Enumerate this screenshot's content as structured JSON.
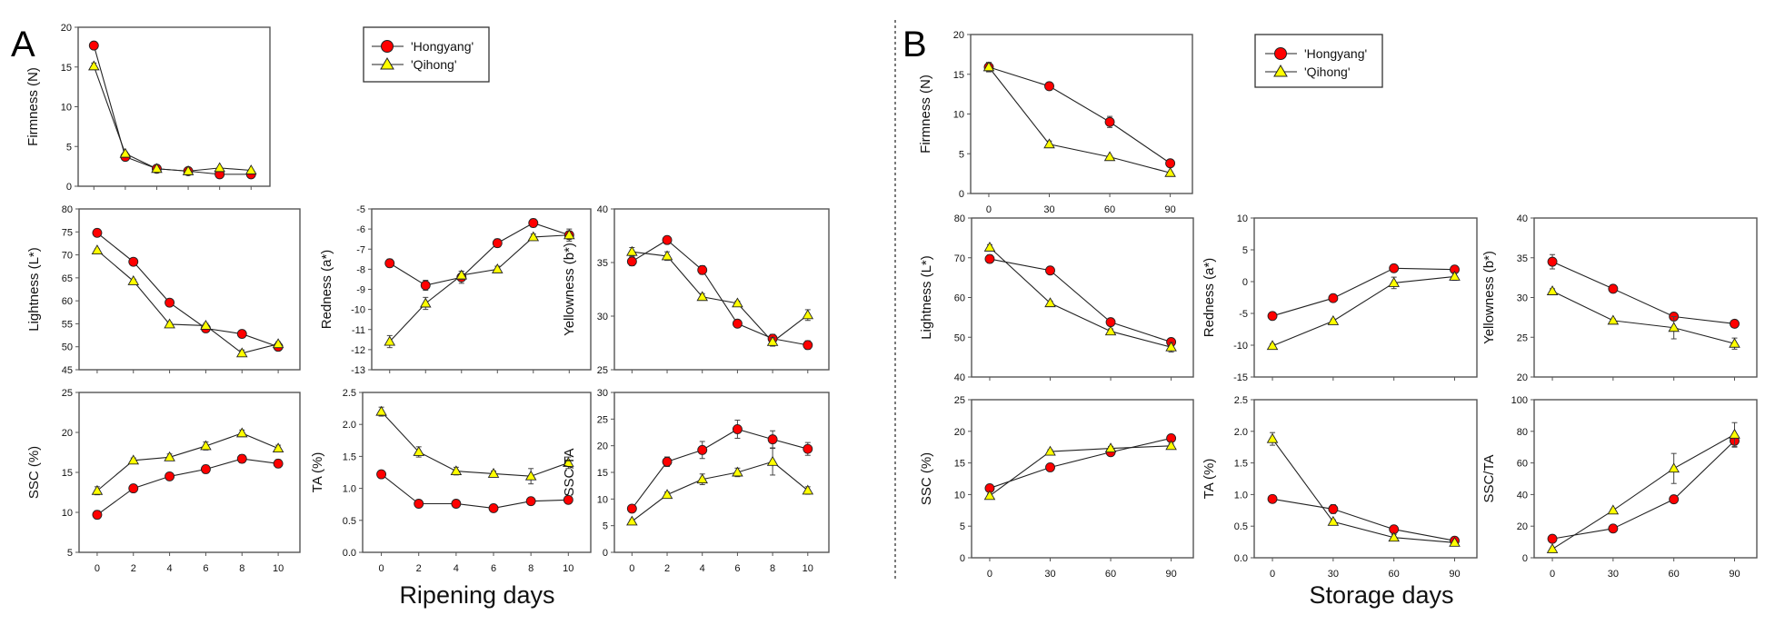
{
  "figure": {
    "panels": [
      {
        "letter": "A",
        "xlabel": "Ripening days"
      },
      {
        "letter": "B",
        "xlabel": "Storage days"
      }
    ],
    "legend": {
      "entries": [
        {
          "label": "'Hongyang'",
          "marker": "circle",
          "color": "#ff0000"
        },
        {
          "label": "'Qihong'",
          "marker": "triangle",
          "color": "#ffff00"
        }
      ]
    },
    "colors": {
      "hongyang": "#ff0000",
      "qihong": "#ffff00",
      "line": "#222222",
      "axis": "#555555"
    }
  },
  "chart_data": [
    {
      "panel": "A",
      "type": "line",
      "id": "A-firmness",
      "ylabel": "Firmness (N)",
      "x": [
        0,
        2,
        4,
        6,
        8,
        10
      ],
      "xticks": [],
      "ylim": [
        0,
        20
      ],
      "yticks": [
        0,
        5,
        10,
        15,
        20
      ],
      "ytick_labels": [
        "0",
        "5",
        "10",
        "15",
        "20"
      ],
      "series": [
        {
          "name": "'Hongyang'",
          "values": [
            17.7,
            3.7,
            2.2,
            1.9,
            1.5,
            1.5
          ],
          "errors": [
            0.3,
            0.2,
            0.1,
            0.1,
            0.1,
            0.1
          ]
        },
        {
          "name": "'Qihong'",
          "values": [
            15.1,
            4.1,
            2.2,
            1.9,
            2.3,
            2.0
          ],
          "errors": [
            0.4,
            0.2,
            0.1,
            0.1,
            0.1,
            0.1
          ]
        }
      ]
    },
    {
      "panel": "A",
      "type": "line",
      "id": "A-lightness",
      "ylabel": "Lightness (L*)",
      "x": [
        0,
        2,
        4,
        6,
        8,
        10
      ],
      "xticks": [],
      "ylim": [
        45,
        80
      ],
      "yticks": [
        45,
        50,
        55,
        60,
        65,
        70,
        75,
        80
      ],
      "ytick_labels": [
        "45",
        "50",
        "55",
        "60",
        "65",
        "70",
        "75",
        "80"
      ],
      "series": [
        {
          "name": "'Hongyang'",
          "values": [
            74.8,
            68.5,
            59.6,
            54.0,
            52.8,
            50.0
          ],
          "errors": [
            0.4,
            0.4,
            0.4,
            0.5,
            0.4,
            0.5
          ]
        },
        {
          "name": "'Qihong'",
          "values": [
            71.0,
            64.3,
            54.9,
            54.6,
            48.6,
            50.6
          ],
          "errors": [
            0.3,
            0.4,
            0.4,
            0.5,
            0.7,
            0.5
          ]
        }
      ]
    },
    {
      "panel": "A",
      "type": "line",
      "id": "A-redness",
      "ylabel": "Redness (a*)",
      "x": [
        0,
        2,
        4,
        6,
        8,
        10
      ],
      "xticks": [],
      "ylim": [
        -13,
        -5
      ],
      "yticks": [
        -13,
        -12,
        -11,
        -10,
        -9,
        -8,
        -7,
        -6,
        -5
      ],
      "ytick_labels": [
        "-13",
        "-12",
        "-11",
        "-10",
        "-9",
        "-8",
        "-7",
        "-6",
        "-5"
      ],
      "series": [
        {
          "name": "'Hongyang'",
          "values": [
            -7.7,
            -8.8,
            -8.4,
            -6.7,
            -5.7,
            -6.3
          ],
          "errors": [
            0.2,
            0.25,
            0.3,
            0.2,
            0.2,
            0.2
          ]
        },
        {
          "name": "'Qihong'",
          "values": [
            -11.6,
            -9.7,
            -8.3,
            -8.0,
            -6.4,
            -6.3
          ],
          "errors": [
            0.3,
            0.3,
            0.2,
            0.15,
            0.15,
            0.3
          ]
        }
      ]
    },
    {
      "panel": "A",
      "type": "line",
      "id": "A-yellowness",
      "ylabel": "Yellowness (b*)",
      "x": [
        0,
        2,
        4,
        6,
        8,
        10
      ],
      "xticks": [],
      "ylim": [
        25,
        40
      ],
      "yticks": [
        25,
        30,
        35,
        40
      ],
      "ytick_labels": [
        "25",
        "30",
        "35",
        "40"
      ],
      "series": [
        {
          "name": "'Hongyang'",
          "values": [
            35.1,
            37.1,
            34.3,
            29.3,
            27.9,
            27.3
          ],
          "errors": [
            0.4,
            0.3,
            0.4,
            0.3,
            0.4,
            0.4
          ]
        },
        {
          "name": "'Qihong'",
          "values": [
            36.0,
            35.6,
            31.8,
            31.2,
            27.6,
            30.1
          ],
          "errors": [
            0.4,
            0.4,
            0.3,
            0.2,
            0.4,
            0.5
          ]
        }
      ]
    },
    {
      "panel": "A",
      "type": "line",
      "id": "A-ssc",
      "ylabel": "SSC (%)",
      "x": [
        0,
        2,
        4,
        6,
        8,
        10
      ],
      "xticks": [
        0,
        2,
        4,
        6,
        8,
        10
      ],
      "ylim": [
        5,
        25
      ],
      "yticks": [
        5,
        10,
        15,
        20,
        25
      ],
      "ytick_labels": [
        "5",
        "10",
        "15",
        "20",
        "25"
      ],
      "series": [
        {
          "name": "'Hongyang'",
          "values": [
            9.7,
            13.0,
            14.5,
            15.4,
            16.7,
            16.1
          ],
          "errors": [
            0.5,
            0.3,
            0.4,
            0.5,
            0.5,
            0.5
          ]
        },
        {
          "name": "'Qihong'",
          "values": [
            12.7,
            16.5,
            16.9,
            18.3,
            19.9,
            18.0
          ],
          "errors": [
            0.5,
            0.3,
            0.4,
            0.5,
            0.4,
            0.4
          ]
        }
      ]
    },
    {
      "panel": "A",
      "type": "line",
      "id": "A-ta",
      "ylabel": "TA (%)",
      "x": [
        0,
        2,
        4,
        6,
        8,
        10
      ],
      "xticks": [
        0,
        2,
        4,
        6,
        8,
        10
      ],
      "ylim": [
        0.0,
        2.5
      ],
      "yticks": [
        0.0,
        0.5,
        1.0,
        1.5,
        2.0,
        2.5
      ],
      "ytick_labels": [
        "0.0",
        "0.5",
        "1.0",
        "1.5",
        "2.0",
        "2.5"
      ],
      "series": [
        {
          "name": "'Hongyang'",
          "values": [
            1.22,
            0.76,
            0.76,
            0.69,
            0.8,
            0.82
          ],
          "errors": [
            0.03,
            0.03,
            0.05,
            0.03,
            0.05,
            0.03
          ]
        },
        {
          "name": "'Qihong'",
          "values": [
            2.2,
            1.57,
            1.27,
            1.23,
            1.19,
            1.4
          ],
          "errors": [
            0.07,
            0.08,
            0.06,
            0.04,
            0.12,
            0.09
          ]
        }
      ]
    },
    {
      "panel": "A",
      "type": "line",
      "id": "A-sscta",
      "ylabel": "SSC/TA",
      "x": [
        0,
        2,
        4,
        6,
        8,
        10
      ],
      "xticks": [
        0,
        2,
        4,
        6,
        8,
        10
      ],
      "ylim": [
        0,
        30
      ],
      "yticks": [
        0,
        5,
        10,
        15,
        20,
        25,
        30
      ],
      "ytick_labels": [
        "0",
        "5",
        "10",
        "15",
        "20",
        "25",
        "30"
      ],
      "series": [
        {
          "name": "'Hongyang'",
          "values": [
            8.2,
            17.0,
            19.2,
            23.1,
            21.2,
            19.4
          ],
          "errors": [
            0.5,
            0.9,
            1.6,
            1.7,
            1.6,
            1.2
          ]
        },
        {
          "name": "'Qihong'",
          "values": [
            5.8,
            10.8,
            13.7,
            15.0,
            17.0,
            11.6
          ],
          "errors": [
            0.3,
            0.5,
            1.0,
            0.8,
            2.5,
            0.7
          ]
        }
      ]
    },
    {
      "panel": "B",
      "type": "line",
      "id": "B-firmness",
      "ylabel": "Firmness (N)",
      "x": [
        0,
        30,
        60,
        90
      ],
      "xticks": [
        0,
        30,
        60,
        90
      ],
      "ylim": [
        0,
        20
      ],
      "yticks": [
        0,
        5,
        10,
        15,
        20
      ],
      "ytick_labels": [
        "0",
        "5",
        "10",
        "15",
        "20"
      ],
      "series": [
        {
          "name": "'Hongyang'",
          "values": [
            15.9,
            13.5,
            9.0,
            3.8
          ],
          "errors": [
            0.4,
            0.2,
            0.7,
            0.2
          ]
        },
        {
          "name": "'Qihong'",
          "values": [
            15.9,
            6.2,
            4.6,
            2.6
          ],
          "errors": [
            0.6,
            0.4,
            0.1,
            0.1
          ]
        }
      ]
    },
    {
      "panel": "B",
      "type": "line",
      "id": "B-lightness",
      "ylabel": "Lightness (L*)",
      "x": [
        0,
        30,
        60,
        90
      ],
      "xticks": [],
      "ylim": [
        40,
        80
      ],
      "yticks": [
        40,
        50,
        60,
        70,
        80
      ],
      "ytick_labels": [
        "40",
        "50",
        "60",
        "70",
        "80"
      ],
      "series": [
        {
          "name": "'Hongyang'",
          "values": [
            69.7,
            66.8,
            53.8,
            48.8
          ],
          "errors": [
            1.0,
            0.8,
            0.6,
            0.6
          ]
        },
        {
          "name": "'Qihong'",
          "values": [
            72.6,
            58.6,
            51.5,
            47.5
          ],
          "errors": [
            0.7,
            0.5,
            0.6,
            1.2
          ]
        }
      ]
    },
    {
      "panel": "B",
      "type": "line",
      "id": "B-redness",
      "ylabel": "Redness (a*)",
      "x": [
        0,
        30,
        60,
        90
      ],
      "xticks": [],
      "ylim": [
        -15,
        10
      ],
      "yticks": [
        -15,
        -10,
        -5,
        0,
        5,
        10
      ],
      "ytick_labels": [
        "-15",
        "-10",
        "-5",
        "0",
        "5",
        "10"
      ],
      "series": [
        {
          "name": "'Hongyang'",
          "values": [
            -5.4,
            -2.6,
            2.1,
            1.9
          ],
          "errors": [
            0.6,
            0.3,
            0.4,
            0.3
          ]
        },
        {
          "name": "'Qihong'",
          "values": [
            -10.1,
            -6.2,
            -0.2,
            0.8
          ],
          "errors": [
            0.3,
            0.3,
            0.9,
            0.6
          ]
        }
      ]
    },
    {
      "panel": "B",
      "type": "line",
      "id": "B-yellowness",
      "ylabel": "Yellowness (b*)",
      "x": [
        0,
        30,
        60,
        90
      ],
      "xticks": [],
      "ylim": [
        20,
        40
      ],
      "yticks": [
        20,
        25,
        30,
        35,
        40
      ],
      "ytick_labels": [
        "20",
        "25",
        "30",
        "35",
        "40"
      ],
      "series": [
        {
          "name": "'Hongyang'",
          "values": [
            34.5,
            31.1,
            27.6,
            26.7
          ],
          "errors": [
            0.9,
            0.4,
            0.4,
            0.3
          ]
        },
        {
          "name": "'Qihong'",
          "values": [
            30.8,
            27.1,
            26.2,
            24.2
          ],
          "errors": [
            0.3,
            0.2,
            1.4,
            0.7
          ]
        }
      ]
    },
    {
      "panel": "B",
      "type": "line",
      "id": "B-ssc",
      "ylabel": "SSC (%)",
      "x": [
        0,
        30,
        60,
        90
      ],
      "xticks": [
        0,
        30,
        60,
        90
      ],
      "ylim": [
        0,
        25
      ],
      "yticks": [
        0,
        5,
        10,
        15,
        20,
        25
      ],
      "ytick_labels": [
        "0",
        "5",
        "10",
        "15",
        "20",
        "25"
      ],
      "series": [
        {
          "name": "'Hongyang'",
          "values": [
            11.0,
            14.3,
            16.7,
            18.9
          ],
          "errors": [
            0.3,
            0.3,
            0.4,
            0.3
          ]
        },
        {
          "name": "'Qihong'",
          "values": [
            9.8,
            16.8,
            17.3,
            17.7
          ],
          "errors": [
            0.3,
            0.3,
            0.3,
            0.3
          ]
        }
      ]
    },
    {
      "panel": "B",
      "type": "line",
      "id": "B-ta",
      "ylabel": "TA (%)",
      "x": [
        0,
        30,
        60,
        90
      ],
      "xticks": [
        0,
        30,
        60,
        90
      ],
      "ylim": [
        0.0,
        2.5
      ],
      "yticks": [
        0.0,
        0.5,
        1.0,
        1.5,
        2.0,
        2.5
      ],
      "ytick_labels": [
        "0.0",
        "0.5",
        "1.0",
        "1.5",
        "2.0",
        "2.5"
      ],
      "series": [
        {
          "name": "'Hongyang'",
          "values": [
            0.93,
            0.77,
            0.45,
            0.27
          ],
          "errors": [
            0.03,
            0.07,
            0.03,
            0.02
          ]
        },
        {
          "name": "'Qihong'",
          "values": [
            1.88,
            0.57,
            0.32,
            0.24
          ],
          "errors": [
            0.1,
            0.03,
            0.05,
            0.02
          ]
        }
      ]
    },
    {
      "panel": "B",
      "type": "line",
      "id": "B-sscta",
      "ylabel": "SSC/TA",
      "x": [
        0,
        30,
        60,
        90
      ],
      "xticks": [
        0,
        30,
        60,
        90
      ],
      "ylim": [
        0,
        100
      ],
      "yticks": [
        0,
        20,
        40,
        60,
        80,
        100
      ],
      "ytick_labels": [
        "0",
        "20",
        "40",
        "60",
        "80",
        "100"
      ],
      "series": [
        {
          "name": "'Hongyang'",
          "values": [
            12.0,
            18.5,
            37.0,
            74.0
          ],
          "errors": [
            0.8,
            1.5,
            1.5,
            4.0
          ]
        },
        {
          "name": "'Qihong'",
          "values": [
            5.5,
            30.0,
            56.5,
            78.0
          ],
          "errors": [
            0.5,
            0.8,
            9.5,
            7.5
          ]
        }
      ]
    }
  ]
}
